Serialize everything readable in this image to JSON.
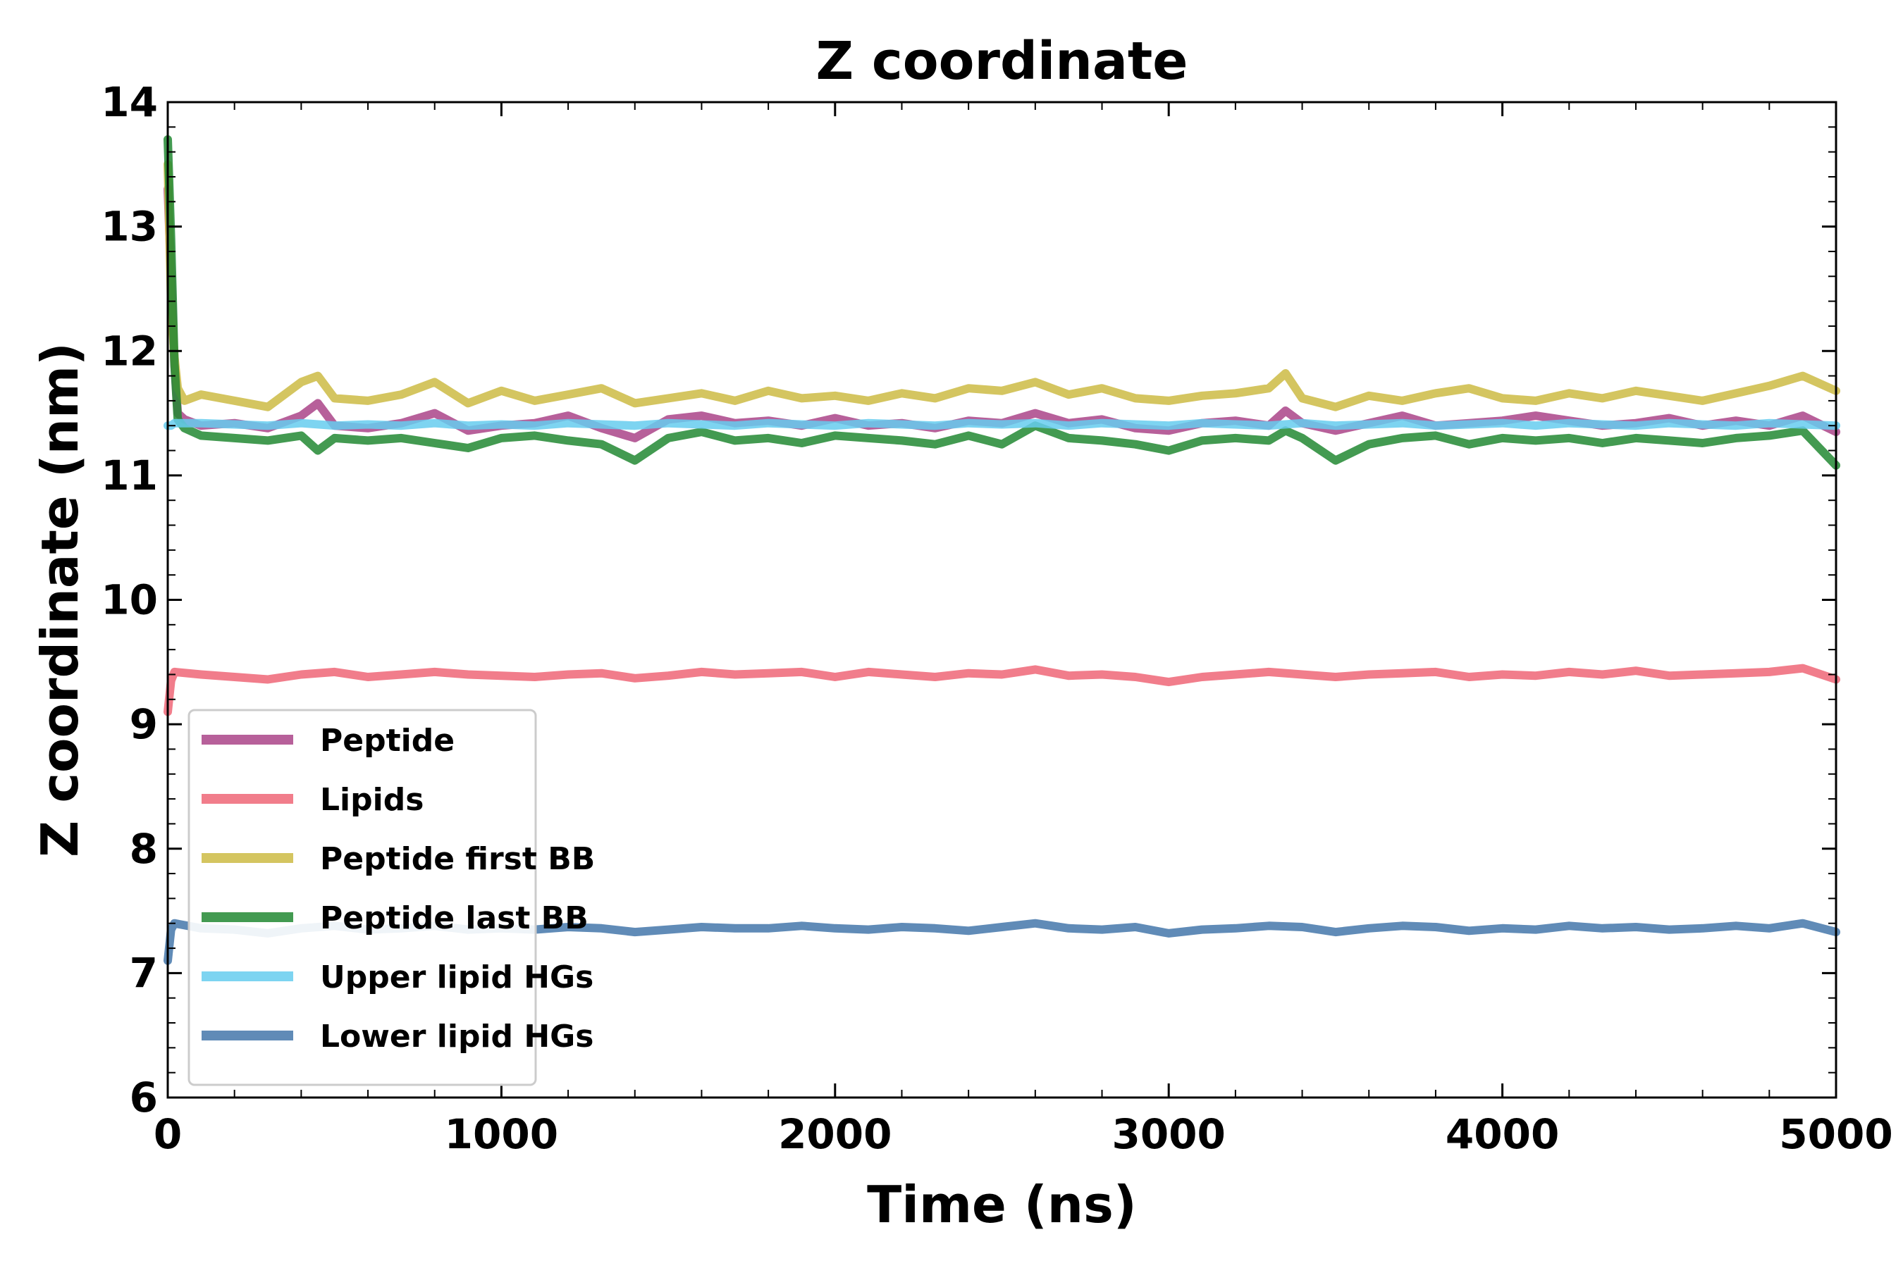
{
  "chart_data": {
    "type": "line",
    "title": "Z coordinate",
    "xlabel": "Time (ns)",
    "ylabel": "Z coordinate (nm)",
    "xlim": [
      0,
      5000
    ],
    "ylim": [
      6,
      14
    ],
    "xticks": [
      "0",
      "1000",
      "2000",
      "3000",
      "4000",
      "5000"
    ],
    "yticks": [
      "6",
      "7",
      "8",
      "9",
      "10",
      "11",
      "12",
      "13",
      "14"
    ],
    "grid": false,
    "legend_position": "lower-left",
    "series": [
      {
        "name": "Peptide",
        "color": "#aa4488",
        "x": [
          0,
          10,
          20,
          30,
          50,
          100,
          200,
          300,
          400,
          450,
          500,
          600,
          700,
          800,
          900,
          1000,
          1100,
          1200,
          1300,
          1400,
          1500,
          1600,
          1700,
          1800,
          1900,
          2000,
          2100,
          2200,
          2300,
          2400,
          2500,
          2600,
          2700,
          2800,
          2900,
          3000,
          3100,
          3200,
          3300,
          3350,
          3400,
          3500,
          3600,
          3700,
          3800,
          3900,
          4000,
          4100,
          4200,
          4300,
          4400,
          4500,
          4600,
          4700,
          4800,
          4900,
          5000
        ],
        "y": [
          13.3,
          12.6,
          11.9,
          11.5,
          11.45,
          11.4,
          11.42,
          11.38,
          11.48,
          11.58,
          11.4,
          11.38,
          11.42,
          11.5,
          11.36,
          11.4,
          11.42,
          11.48,
          11.38,
          11.3,
          11.45,
          11.48,
          11.42,
          11.44,
          11.4,
          11.46,
          11.4,
          11.42,
          11.38,
          11.44,
          11.42,
          11.5,
          11.42,
          11.45,
          11.38,
          11.36,
          11.42,
          11.44,
          11.4,
          11.52,
          11.42,
          11.36,
          11.42,
          11.48,
          11.4,
          11.42,
          11.44,
          11.48,
          11.44,
          11.4,
          11.42,
          11.46,
          11.4,
          11.44,
          11.4,
          11.48,
          11.35
        ]
      },
      {
        "name": "Lipids",
        "color": "#ee6677",
        "x": [
          0,
          10,
          20,
          100,
          200,
          300,
          400,
          500,
          600,
          700,
          800,
          900,
          1000,
          1100,
          1200,
          1300,
          1400,
          1500,
          1600,
          1700,
          1800,
          1900,
          2000,
          2100,
          2200,
          2300,
          2400,
          2500,
          2600,
          2700,
          2800,
          2900,
          3000,
          3100,
          3200,
          3300,
          3400,
          3500,
          3600,
          3700,
          3800,
          3900,
          4000,
          4100,
          4200,
          4300,
          4400,
          4500,
          4600,
          4700,
          4800,
          4900,
          5000
        ],
        "y": [
          9.1,
          9.35,
          9.42,
          9.4,
          9.38,
          9.36,
          9.4,
          9.42,
          9.38,
          9.4,
          9.42,
          9.4,
          9.39,
          9.38,
          9.4,
          9.41,
          9.37,
          9.39,
          9.42,
          9.4,
          9.41,
          9.42,
          9.38,
          9.42,
          9.4,
          9.38,
          9.41,
          9.4,
          9.44,
          9.39,
          9.4,
          9.38,
          9.34,
          9.38,
          9.4,
          9.42,
          9.4,
          9.38,
          9.4,
          9.41,
          9.42,
          9.38,
          9.4,
          9.39,
          9.42,
          9.4,
          9.43,
          9.39,
          9.4,
          9.41,
          9.42,
          9.45,
          9.36
        ]
      },
      {
        "name": "Peptide first BB",
        "color": "#ccbb44",
        "x": [
          0,
          10,
          20,
          30,
          50,
          100,
          200,
          300,
          400,
          450,
          500,
          600,
          700,
          800,
          900,
          1000,
          1100,
          1200,
          1300,
          1400,
          1500,
          1600,
          1700,
          1800,
          1900,
          2000,
          2100,
          2200,
          2300,
          2400,
          2500,
          2600,
          2700,
          2800,
          2900,
          3000,
          3100,
          3200,
          3300,
          3350,
          3400,
          3500,
          3600,
          3700,
          3800,
          3900,
          4000,
          4100,
          4200,
          4300,
          4400,
          4500,
          4600,
          4700,
          4800,
          4900,
          5000
        ],
        "y": [
          13.5,
          12.4,
          11.95,
          11.7,
          11.6,
          11.65,
          11.6,
          11.55,
          11.75,
          11.8,
          11.62,
          11.6,
          11.65,
          11.75,
          11.58,
          11.68,
          11.6,
          11.65,
          11.7,
          11.58,
          11.62,
          11.66,
          11.6,
          11.68,
          11.62,
          11.64,
          11.6,
          11.66,
          11.62,
          11.7,
          11.68,
          11.75,
          11.65,
          11.7,
          11.62,
          11.6,
          11.64,
          11.66,
          11.7,
          11.82,
          11.62,
          11.55,
          11.64,
          11.6,
          11.66,
          11.7,
          11.62,
          11.6,
          11.66,
          11.62,
          11.68,
          11.64,
          11.6,
          11.66,
          11.72,
          11.8,
          11.68
        ]
      },
      {
        "name": "Peptide last BB",
        "color": "#228833",
        "x": [
          0,
          10,
          20,
          30,
          50,
          100,
          200,
          300,
          400,
          450,
          500,
          600,
          700,
          800,
          900,
          1000,
          1100,
          1200,
          1300,
          1400,
          1500,
          1600,
          1700,
          1800,
          1900,
          2000,
          2100,
          2200,
          2300,
          2400,
          2500,
          2600,
          2700,
          2800,
          2900,
          3000,
          3100,
          3200,
          3300,
          3350,
          3400,
          3500,
          3600,
          3700,
          3800,
          3900,
          4000,
          4100,
          4200,
          4300,
          4400,
          4500,
          4600,
          4700,
          4800,
          4900,
          5000
        ],
        "y": [
          13.7,
          12.9,
          11.9,
          11.45,
          11.38,
          11.32,
          11.3,
          11.28,
          11.32,
          11.2,
          11.3,
          11.28,
          11.3,
          11.26,
          11.22,
          11.3,
          11.32,
          11.28,
          11.25,
          11.12,
          11.3,
          11.35,
          11.28,
          11.3,
          11.26,
          11.32,
          11.3,
          11.28,
          11.25,
          11.32,
          11.25,
          11.4,
          11.3,
          11.28,
          11.25,
          11.2,
          11.28,
          11.3,
          11.28,
          11.36,
          11.3,
          11.12,
          11.25,
          11.3,
          11.32,
          11.25,
          11.3,
          11.28,
          11.3,
          11.26,
          11.3,
          11.28,
          11.26,
          11.3,
          11.32,
          11.36,
          11.08
        ]
      },
      {
        "name": "Upper lipid HGs",
        "color": "#66ccee",
        "x": [
          0,
          10,
          20,
          100,
          200,
          300,
          400,
          500,
          600,
          700,
          800,
          900,
          1000,
          1100,
          1200,
          1300,
          1400,
          1500,
          1600,
          1700,
          1800,
          1900,
          2000,
          2100,
          2200,
          2300,
          2400,
          2500,
          2600,
          2700,
          2800,
          2900,
          3000,
          3100,
          3200,
          3300,
          3400,
          3500,
          3600,
          3700,
          3800,
          3900,
          4000,
          4100,
          4200,
          4300,
          4400,
          4500,
          4600,
          4700,
          4800,
          4900,
          5000
        ],
        "y": [
          11.4,
          11.4,
          11.42,
          11.42,
          11.41,
          11.4,
          11.42,
          11.4,
          11.41,
          11.4,
          11.42,
          11.4,
          11.41,
          11.4,
          11.42,
          11.41,
          11.4,
          11.42,
          11.41,
          11.4,
          11.42,
          11.41,
          11.4,
          11.42,
          11.41,
          11.4,
          11.42,
          11.41,
          11.42,
          11.4,
          11.42,
          11.41,
          11.4,
          11.42,
          11.41,
          11.4,
          11.42,
          11.4,
          11.41,
          11.42,
          11.4,
          11.41,
          11.42,
          11.4,
          11.42,
          11.41,
          11.4,
          11.42,
          11.41,
          11.4,
          11.42,
          11.41,
          11.4
        ]
      },
      {
        "name": "Lower lipid HGs",
        "color": "#4477aa",
        "x": [
          0,
          10,
          20,
          100,
          200,
          300,
          400,
          500,
          600,
          700,
          800,
          900,
          1000,
          1100,
          1200,
          1300,
          1400,
          1500,
          1600,
          1700,
          1800,
          1900,
          2000,
          2100,
          2200,
          2300,
          2400,
          2500,
          2600,
          2700,
          2800,
          2900,
          3000,
          3100,
          3200,
          3300,
          3400,
          3500,
          3600,
          3700,
          3800,
          3900,
          4000,
          4100,
          4200,
          4300,
          4400,
          4500,
          4600,
          4700,
          4800,
          4900,
          5000
        ],
        "y": [
          7.1,
          7.35,
          7.4,
          7.36,
          7.35,
          7.32,
          7.36,
          7.38,
          7.35,
          7.36,
          7.38,
          7.35,
          7.36,
          7.35,
          7.37,
          7.36,
          7.33,
          7.35,
          7.37,
          7.36,
          7.36,
          7.38,
          7.36,
          7.35,
          7.37,
          7.36,
          7.34,
          7.37,
          7.4,
          7.36,
          7.35,
          7.37,
          7.32,
          7.35,
          7.36,
          7.38,
          7.37,
          7.33,
          7.36,
          7.38,
          7.37,
          7.34,
          7.36,
          7.35,
          7.38,
          7.36,
          7.37,
          7.35,
          7.36,
          7.38,
          7.36,
          7.4,
          7.33
        ]
      }
    ]
  }
}
